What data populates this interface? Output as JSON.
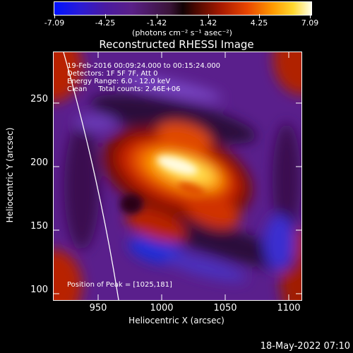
{
  "colorbar": {
    "ticks": [
      "-7.09",
      "-4.25",
      "-1.42",
      "1.42",
      "4.25",
      "7.09"
    ],
    "units": "(photons cm⁻² s⁻¹ asec⁻²)"
  },
  "chart_data": {
    "type": "heatmap",
    "title": "Reconstructed RHESSI Image",
    "xlabel": "Heliocentric X (arcsec)",
    "ylabel": "Heliocentric Y (arcsec)",
    "xlim": [
      915,
      1110
    ],
    "ylim": [
      95,
      290
    ],
    "xticks": [
      950,
      1000,
      1050,
      1100
    ],
    "xtick_labels": [
      "950",
      "1000",
      "1050",
      "1100"
    ],
    "yticks": [
      100,
      150,
      200,
      250
    ],
    "ytick_labels": [
      "100",
      "150",
      "200",
      "250"
    ],
    "zlim": [
      -7.09,
      7.09
    ],
    "peak": [
      1025,
      181
    ],
    "annotations": [
      "19-Feb-2016 00:09:24.000 to 00:15:24.000",
      "Detectors: 1F 5F 7F, Att 0",
      "Energy Range: 6.0 - 12.0 keV",
      "Clean     Total counts: 2.46E+06",
      "Position of Peak = [1025,181]"
    ]
  },
  "footer": {
    "date": "18-May-2022 07:10"
  }
}
